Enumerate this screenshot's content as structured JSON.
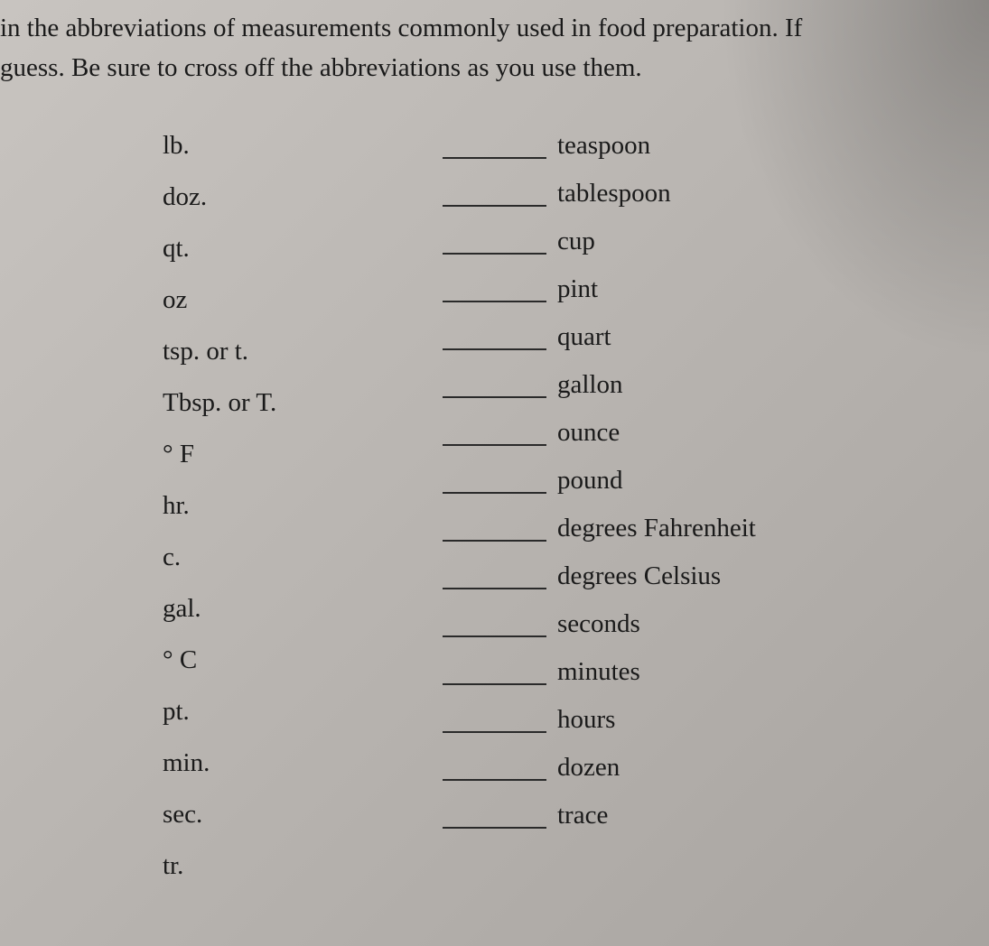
{
  "instructions": {
    "line1": "in the abbreviations of measurements commonly used in food preparation.  If",
    "line2": "guess.  Be sure to cross off the abbreviations as you use them."
  },
  "abbreviations": [
    "lb.",
    "doz.",
    "qt.",
    "oz",
    "tsp. or t.",
    "Tbsp. or T.",
    "° F",
    "hr.",
    "c.",
    "gal.",
    "° C",
    "pt.",
    "min.",
    "sec.",
    "tr."
  ],
  "words": [
    "teaspoon",
    "tablespoon",
    "cup",
    "pint",
    "quart",
    "gallon",
    "ounce",
    "pound",
    "degrees Fahrenheit",
    "degrees Celsius",
    "seconds",
    "minutes",
    "hours",
    "dozen",
    "trace"
  ],
  "styling": {
    "background_gradient_start": "#c8c4c0",
    "background_gradient_end": "#a8a4a0",
    "text_color": "#1a1a1a",
    "font_family": "Georgia, Times New Roman, serif",
    "instruction_fontsize": 29,
    "item_fontsize": 29,
    "blank_width": 115,
    "blank_border_color": "#2a2a2a",
    "left_column_width": 310,
    "content_padding_left": 180
  }
}
